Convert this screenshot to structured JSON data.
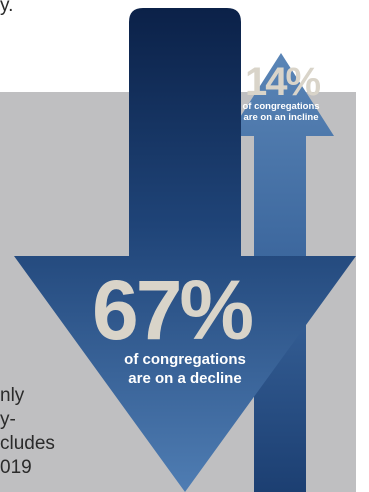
{
  "background_text": {
    "top_fragment": "y.",
    "line1": "nly",
    "line2": "y-",
    "line3": "cludes",
    "line4": "019"
  },
  "incline": {
    "percent": "14%",
    "caption_line1": "of congregations",
    "caption_line2": "are on an incline"
  },
  "decline": {
    "percent": "67%",
    "caption_line1": "of congregations",
    "caption_line2": "are on a decline"
  },
  "colors": {
    "arrow_dark": "#0f2a52",
    "arrow_mid": "#2f5a8e",
    "arrow_light": "#5b86b8",
    "percent_text": "#d9d4c9",
    "panel_gray": "#bfbfc1"
  }
}
